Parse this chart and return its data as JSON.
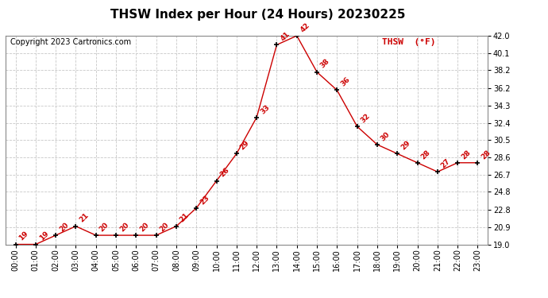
{
  "title": "THSW Index per Hour (24 Hours) 20230225",
  "copyright": "Copyright 2023 Cartronics.com",
  "legend_label": "THSW  (°F)",
  "hours": [
    "00:00",
    "01:00",
    "02:00",
    "03:00",
    "04:00",
    "05:00",
    "06:00",
    "07:00",
    "08:00",
    "09:00",
    "10:00",
    "11:00",
    "12:00",
    "13:00",
    "14:00",
    "15:00",
    "16:00",
    "17:00",
    "18:00",
    "19:00",
    "20:00",
    "21:00",
    "22:00",
    "23:00"
  ],
  "values": [
    19,
    19,
    20,
    21,
    20,
    20,
    20,
    20,
    21,
    23,
    26,
    29,
    33,
    41,
    42,
    38,
    36,
    32,
    30,
    29,
    28,
    27,
    28,
    28
  ],
  "ylim": [
    19.0,
    42.0
  ],
  "yticks": [
    19.0,
    20.9,
    22.8,
    24.8,
    26.7,
    28.6,
    30.5,
    32.4,
    34.3,
    36.2,
    38.2,
    40.1,
    42.0
  ],
  "ytick_labels": [
    "19.0",
    "20.9",
    "22.8",
    "24.8",
    "26.7",
    "28.6",
    "30.5",
    "32.4",
    "34.3",
    "36.2",
    "38.2",
    "40.1",
    "42.0"
  ],
  "line_color": "#cc0000",
  "marker_color": "#000000",
  "label_color": "#cc0000",
  "grid_color": "#c8c8c8",
  "background_color": "#ffffff",
  "title_fontsize": 11,
  "copyright_fontsize": 7,
  "legend_fontsize": 8,
  "label_fontsize": 6.5,
  "tick_fontsize": 7
}
